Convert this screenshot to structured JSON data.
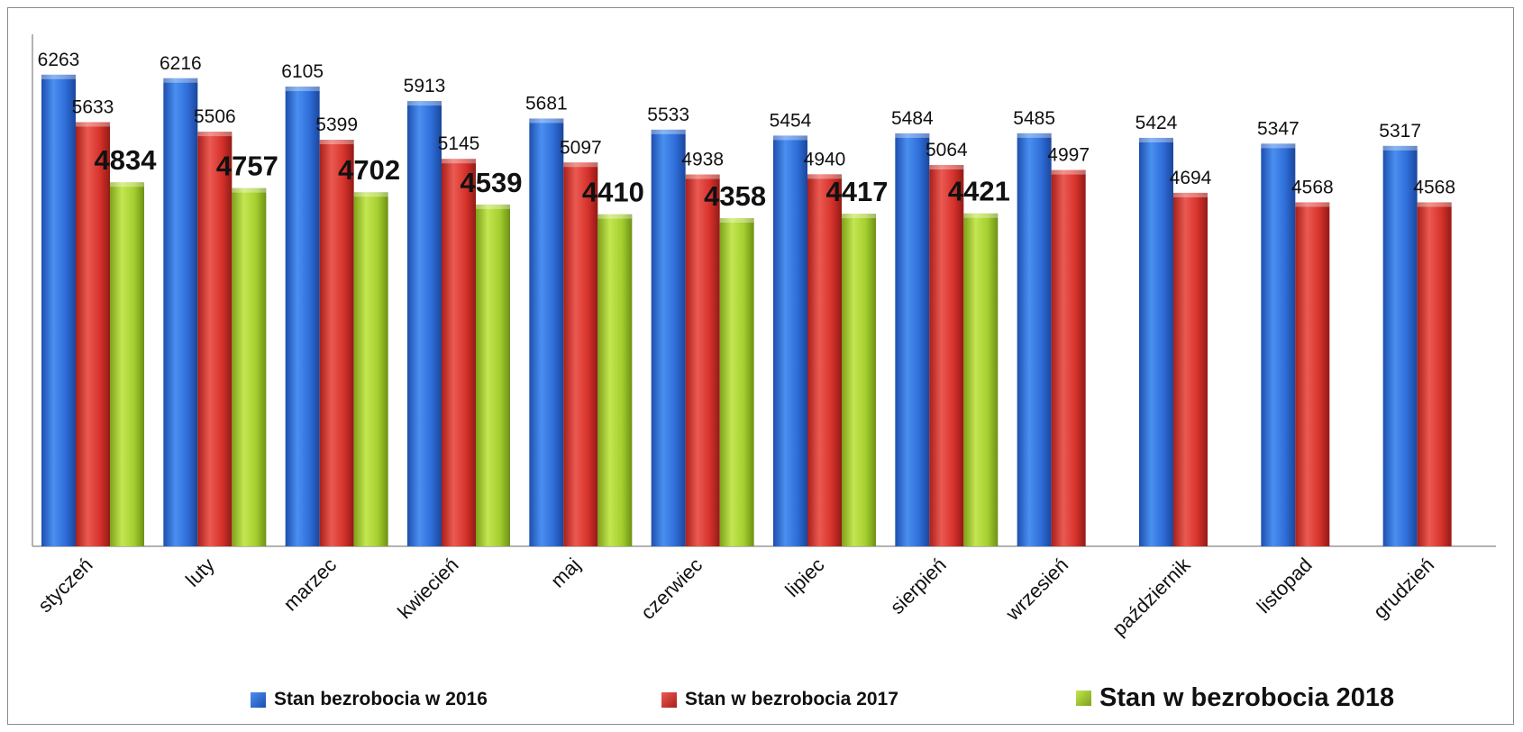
{
  "chart_data": {
    "type": "bar",
    "categories": [
      "styczeń",
      "luty",
      "marzec",
      "kwiecień",
      "maj",
      "czerwiec",
      "lipiec",
      "sierpień",
      "wrzesień",
      "październik",
      "listopad",
      "grudzień"
    ],
    "series": [
      {
        "name": "Stan bezrobocia  w 2016",
        "color": "#2f6ed9",
        "values": [
          6263,
          6216,
          6105,
          5913,
          5681,
          5533,
          5454,
          5484,
          5485,
          5424,
          5347,
          5317
        ]
      },
      {
        "name": "Stan w bezrobocia 2017",
        "color": "#d7332c",
        "values": [
          5633,
          5506,
          5399,
          5145,
          5097,
          4938,
          4940,
          5064,
          4997,
          4694,
          4568,
          4568
        ]
      },
      {
        "name": "Stan w bezrobocia 2018",
        "color": "#a5cf2f",
        "values": [
          4834,
          4757,
          4702,
          4539,
          4410,
          4358,
          4417,
          4421,
          null,
          null,
          null,
          null
        ]
      }
    ],
    "ylim": [
      0,
      6800
    ],
    "grid": false,
    "legend_position": "bottom"
  }
}
